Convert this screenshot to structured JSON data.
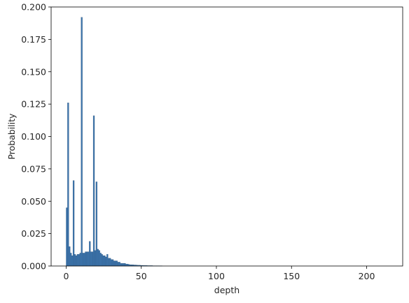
{
  "chart_data": {
    "type": "bar",
    "title": "",
    "xlabel": "depth",
    "ylabel": "Probability",
    "xlim": [
      -10,
      224
    ],
    "ylim": [
      0,
      0.2
    ],
    "xticks": [
      0,
      50,
      100,
      150,
      200
    ],
    "yticks": [
      0.0,
      0.025,
      0.05,
      0.075,
      0.1,
      0.125,
      0.15,
      0.175,
      0.2
    ],
    "ytick_labels": [
      "0.000",
      "0.025",
      "0.050",
      "0.075",
      "0.100",
      "0.125",
      "0.150",
      "0.175",
      "0.200"
    ],
    "grid": false,
    "bar_color": "#3b75af",
    "bar_edge_color": "#2b4f72",
    "bin_width": 0.9,
    "bins": [
      [
        0.0,
        0.045
      ],
      [
        0.9,
        0.126
      ],
      [
        1.8,
        0.015
      ],
      [
        2.7,
        0.01
      ],
      [
        3.6,
        0.008
      ],
      [
        4.5,
        0.066
      ],
      [
        5.4,
        0.009
      ],
      [
        6.3,
        0.008
      ],
      [
        7.2,
        0.009
      ],
      [
        8.1,
        0.009
      ],
      [
        9.0,
        0.01
      ],
      [
        9.9,
        0.192
      ],
      [
        10.8,
        0.01
      ],
      [
        11.7,
        0.01
      ],
      [
        12.6,
        0.011
      ],
      [
        13.5,
        0.011
      ],
      [
        14.4,
        0.011
      ],
      [
        15.3,
        0.019
      ],
      [
        16.2,
        0.011
      ],
      [
        17.1,
        0.011
      ],
      [
        18.0,
        0.116
      ],
      [
        18.9,
        0.012
      ],
      [
        19.8,
        0.065
      ],
      [
        20.7,
        0.013
      ],
      [
        21.6,
        0.012
      ],
      [
        22.5,
        0.01
      ],
      [
        23.4,
        0.009
      ],
      [
        24.3,
        0.008
      ],
      [
        25.2,
        0.008
      ],
      [
        26.1,
        0.007
      ],
      [
        27.0,
        0.009
      ],
      [
        27.9,
        0.006
      ],
      [
        28.8,
        0.006
      ],
      [
        29.7,
        0.005
      ],
      [
        30.6,
        0.005
      ],
      [
        31.5,
        0.004
      ],
      [
        32.4,
        0.004
      ],
      [
        33.3,
        0.004
      ],
      [
        34.2,
        0.003
      ],
      [
        35.1,
        0.003
      ],
      [
        36.0,
        0.002
      ],
      [
        36.9,
        0.002
      ],
      [
        37.8,
        0.002
      ],
      [
        38.7,
        0.002
      ],
      [
        39.6,
        0.0015
      ],
      [
        40.5,
        0.0015
      ],
      [
        41.4,
        0.0012
      ],
      [
        42.3,
        0.001
      ],
      [
        43.2,
        0.001
      ],
      [
        44.1,
        0.0009
      ],
      [
        45.0,
        0.0008
      ],
      [
        45.9,
        0.0008
      ],
      [
        46.8,
        0.0007
      ],
      [
        47.7,
        0.0006
      ],
      [
        48.6,
        0.0006
      ],
      [
        49.5,
        0.0005
      ],
      [
        50.4,
        0.0005
      ],
      [
        51.3,
        0.0004
      ],
      [
        52.2,
        0.0004
      ],
      [
        53.1,
        0.0004
      ],
      [
        54.0,
        0.0003
      ],
      [
        54.9,
        0.0003
      ],
      [
        55.8,
        0.0003
      ],
      [
        56.7,
        0.0003
      ],
      [
        57.6,
        0.0002
      ],
      [
        58.5,
        0.0002
      ],
      [
        59.4,
        0.0002
      ],
      [
        60.3,
        0.0002
      ],
      [
        61.2,
        0.0002
      ],
      [
        62.1,
        0.0001
      ],
      [
        63.0,
        0.0001
      ]
    ]
  }
}
